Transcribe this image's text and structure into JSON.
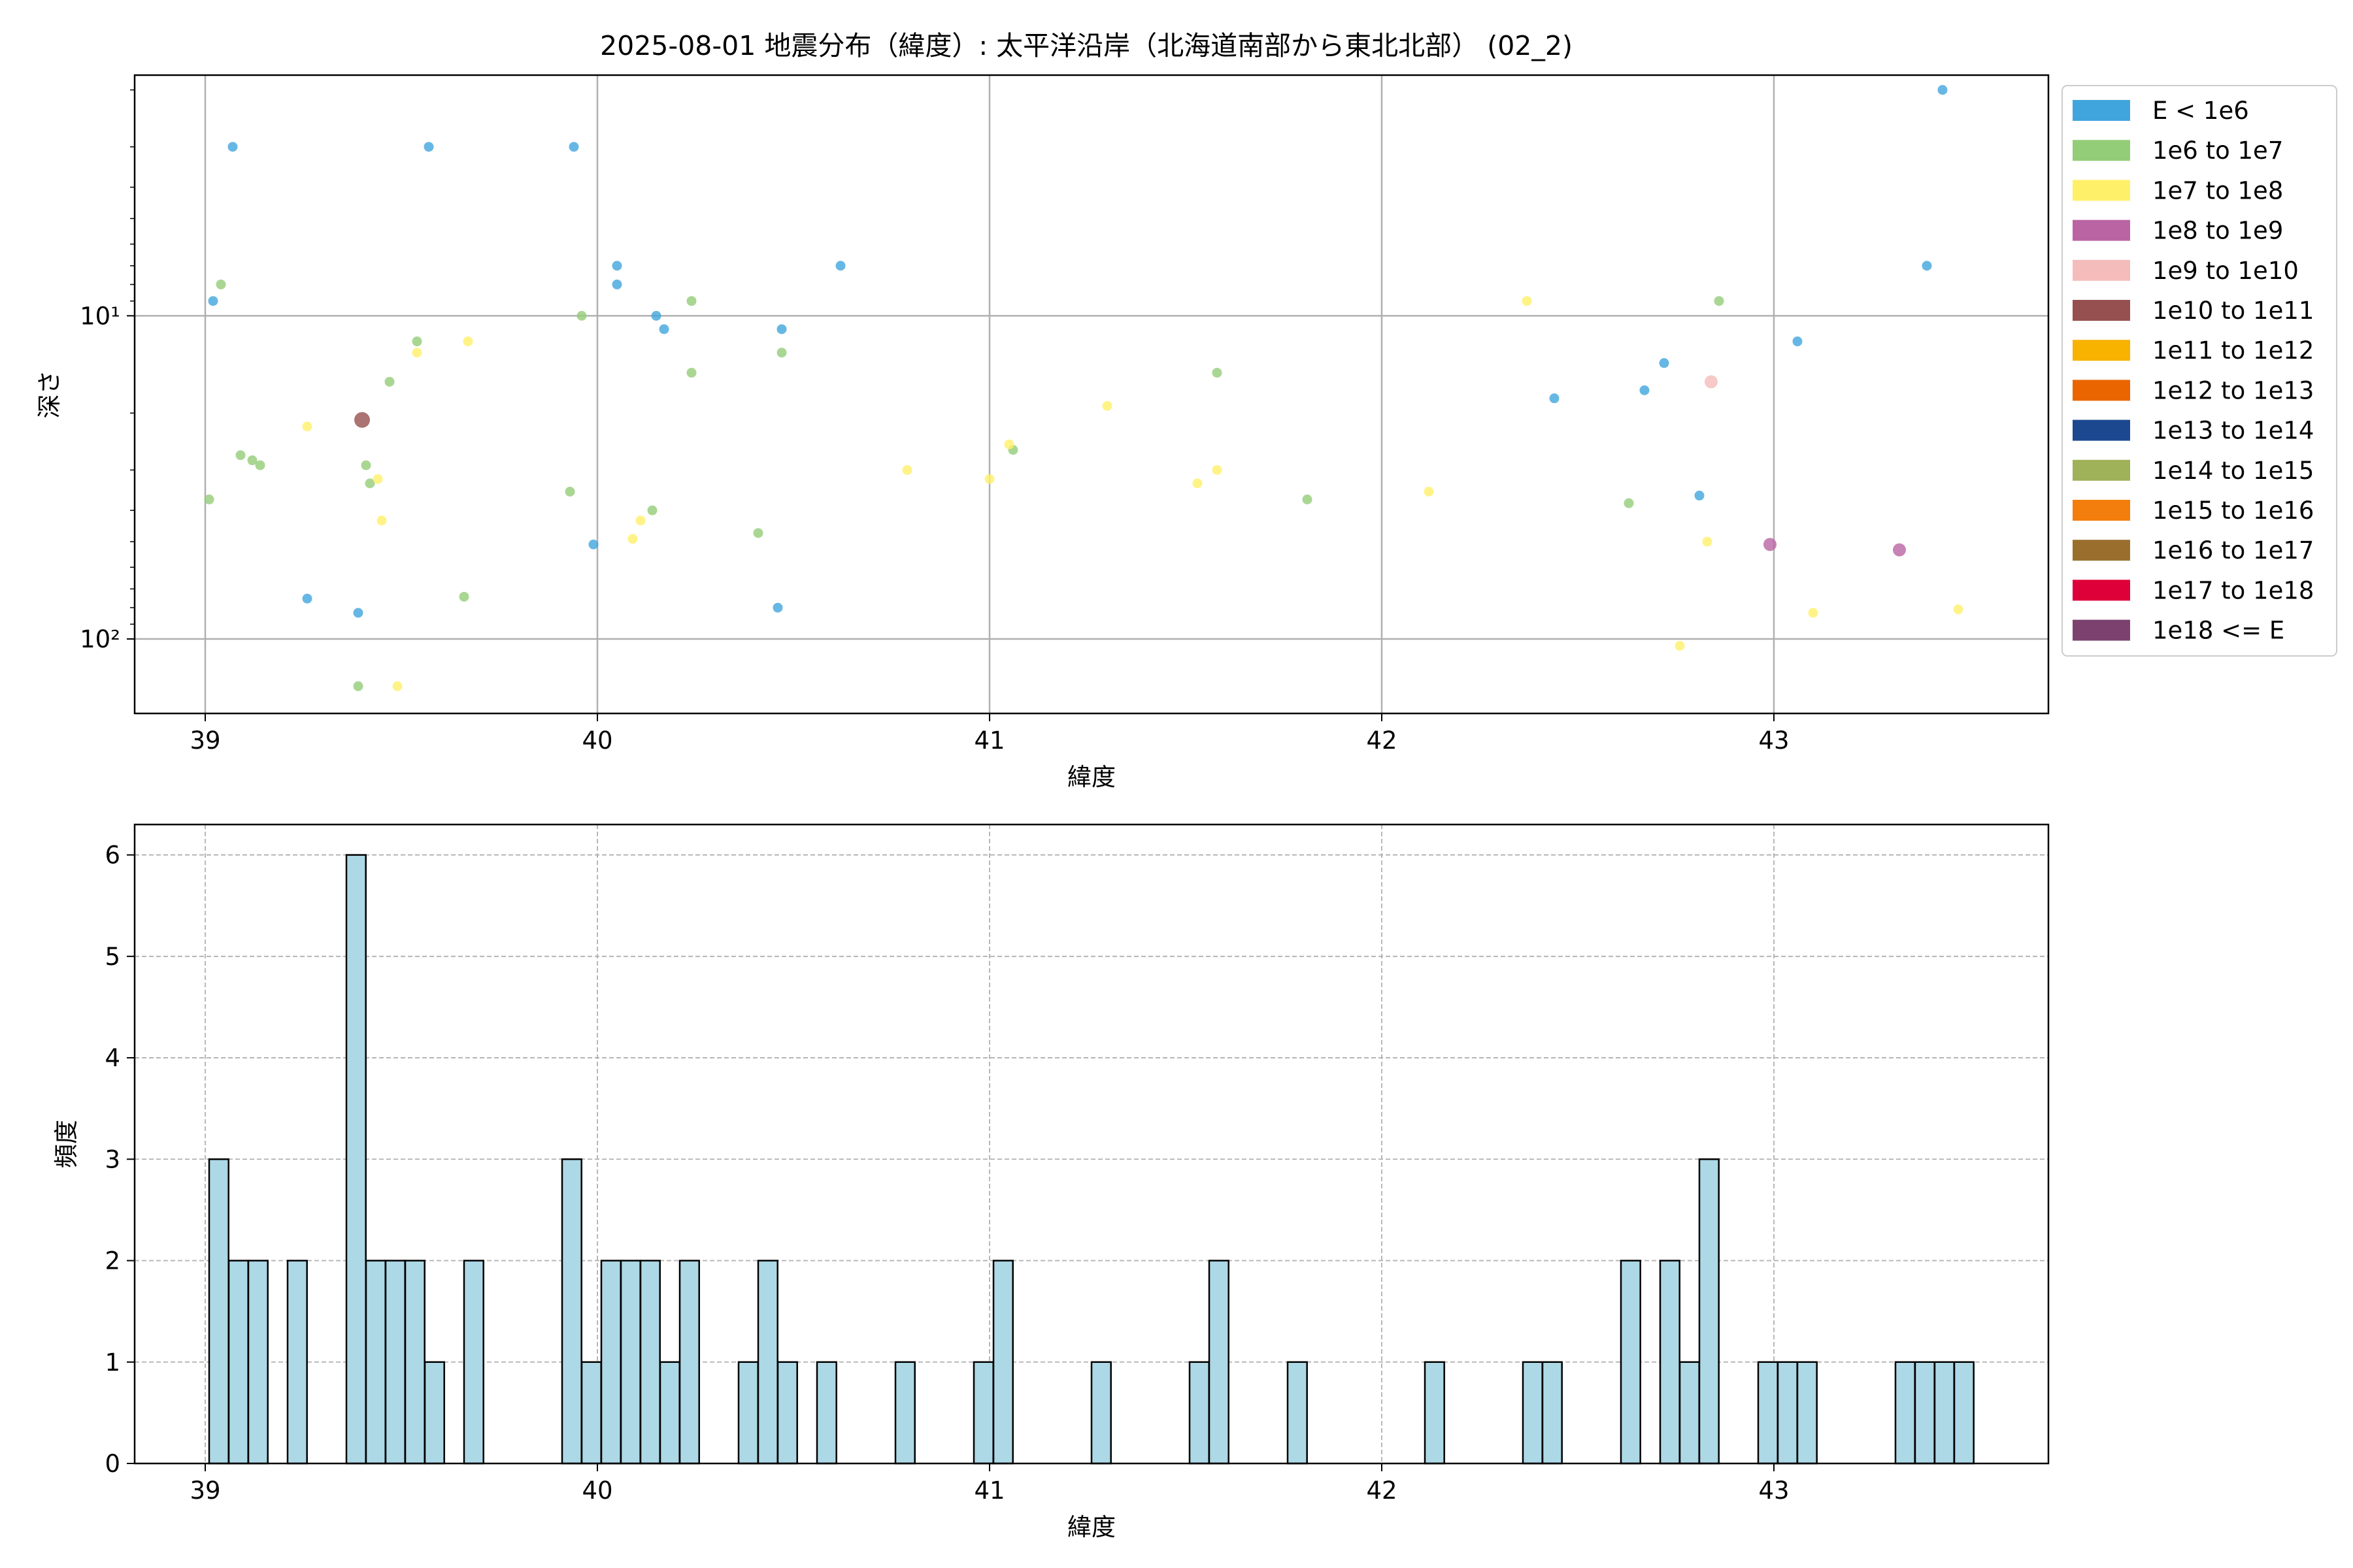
{
  "title": "2025-08-01 地震分布（緯度）: 太平洋沿岸（北海道南部から東北北部） (02_2)",
  "chart_data": [
    {
      "type": "scatter",
      "xlabel": "緯度",
      "ylabel": "深さ",
      "xlim": [
        38.82,
        43.7
      ],
      "ylim": [
        170,
        1.8
      ],
      "yscale": "log",
      "y_inverted": true,
      "xticks": [
        39,
        40,
        41,
        42,
        43
      ],
      "yticks": [
        {
          "value": 10,
          "label": "10¹"
        },
        {
          "value": 100,
          "label": "10²"
        }
      ],
      "grid": true,
      "legend_position": "outside-right",
      "legend": [
        {
          "label": "E < 1e6",
          "color": "#41a5dd"
        },
        {
          "label": "1e6 to 1e7",
          "color": "#94cd78"
        },
        {
          "label": "1e7 to 1e8",
          "color": "#fff06a"
        },
        {
          "label": "1e8 to 1e9",
          "color": "#ba64a4"
        },
        {
          "label": "1e9 to 1e10",
          "color": "#f5bcbc"
        },
        {
          "label": "1e10 to 1e11",
          "color": "#96504f"
        },
        {
          "label": "1e11 to 1e12",
          "color": "#f8b200"
        },
        {
          "label": "1e12 to 1e13",
          "color": "#ea6500"
        },
        {
          "label": "1e13 to 1e14",
          "color": "#1c4890"
        },
        {
          "label": "1e14 to 1e15",
          "color": "#9fb159"
        },
        {
          "label": "1e15 to 1e16",
          "color": "#f37e0d"
        },
        {
          "label": "1e16 to 1e17",
          "color": "#9a6f2e"
        },
        {
          "label": "1e17 to 1e18",
          "color": "#de0039"
        },
        {
          "label": "1e18 <= E",
          "color": "#7c416f"
        }
      ],
      "points": [
        {
          "x": 39.07,
          "y": 3.0,
          "c": 0
        },
        {
          "x": 39.57,
          "y": 3.0,
          "c": 0
        },
        {
          "x": 39.94,
          "y": 3.0,
          "c": 0
        },
        {
          "x": 39.02,
          "y": 9.0,
          "c": 0
        },
        {
          "x": 40.05,
          "y": 7.0,
          "c": 0
        },
        {
          "x": 40.05,
          "y": 8.0,
          "c": 0
        },
        {
          "x": 40.15,
          "y": 10.0,
          "c": 0
        },
        {
          "x": 40.17,
          "y": 11.0,
          "c": 0
        },
        {
          "x": 40.47,
          "y": 11.0,
          "c": 0
        },
        {
          "x": 40.62,
          "y": 7.0,
          "c": 0
        },
        {
          "x": 39.26,
          "y": 75.0,
          "c": 0
        },
        {
          "x": 39.39,
          "y": 83.0,
          "c": 0
        },
        {
          "x": 39.99,
          "y": 51.0,
          "c": 0
        },
        {
          "x": 40.46,
          "y": 80.0,
          "c": 0
        },
        {
          "x": 42.44,
          "y": 18.0,
          "c": 0
        },
        {
          "x": 42.67,
          "y": 17.0,
          "c": 0
        },
        {
          "x": 42.72,
          "y": 14.0,
          "c": 0
        },
        {
          "x": 42.81,
          "y": 36.0,
          "c": 0
        },
        {
          "x": 43.06,
          "y": 12.0,
          "c": 0
        },
        {
          "x": 43.39,
          "y": 7.0,
          "c": 0
        },
        {
          "x": 43.43,
          "y": 2.0,
          "c": 0
        },
        {
          "x": 39.01,
          "y": 37.0,
          "c": 1
        },
        {
          "x": 39.04,
          "y": 8.0,
          "c": 1
        },
        {
          "x": 39.09,
          "y": 27.0,
          "c": 1
        },
        {
          "x": 39.12,
          "y": 28.0,
          "c": 1
        },
        {
          "x": 39.14,
          "y": 29.0,
          "c": 1
        },
        {
          "x": 39.41,
          "y": 29.0,
          "c": 1
        },
        {
          "x": 39.42,
          "y": 33.0,
          "c": 1
        },
        {
          "x": 39.47,
          "y": 16.0,
          "c": 1
        },
        {
          "x": 39.54,
          "y": 12.0,
          "c": 1
        },
        {
          "x": 39.66,
          "y": 74.0,
          "c": 1
        },
        {
          "x": 39.39,
          "y": 140.0,
          "c": 1
        },
        {
          "x": 39.93,
          "y": 35.0,
          "c": 1
        },
        {
          "x": 39.96,
          "y": 10.0,
          "c": 1
        },
        {
          "x": 40.14,
          "y": 40.0,
          "c": 1
        },
        {
          "x": 40.24,
          "y": 9.0,
          "c": 1
        },
        {
          "x": 40.24,
          "y": 15.0,
          "c": 1
        },
        {
          "x": 40.41,
          "y": 47.0,
          "c": 1
        },
        {
          "x": 40.47,
          "y": 13.0,
          "c": 1
        },
        {
          "x": 41.06,
          "y": 26.0,
          "c": 1
        },
        {
          "x": 41.58,
          "y": 15.0,
          "c": 1
        },
        {
          "x": 41.81,
          "y": 37.0,
          "c": 1
        },
        {
          "x": 42.63,
          "y": 38.0,
          "c": 1
        },
        {
          "x": 42.86,
          "y": 9.0,
          "c": 1
        },
        {
          "x": 39.26,
          "y": 22.0,
          "c": 2
        },
        {
          "x": 39.44,
          "y": 32.0,
          "c": 2
        },
        {
          "x": 39.45,
          "y": 43.0,
          "c": 2
        },
        {
          "x": 39.49,
          "y": 140.0,
          "c": 2
        },
        {
          "x": 39.54,
          "y": 13.0,
          "c": 2
        },
        {
          "x": 39.67,
          "y": 12.0,
          "c": 2
        },
        {
          "x": 40.09,
          "y": 49.0,
          "c": 2
        },
        {
          "x": 40.11,
          "y": 43.0,
          "c": 2
        },
        {
          "x": 40.79,
          "y": 30.0,
          "c": 2
        },
        {
          "x": 41.0,
          "y": 32.0,
          "c": 2
        },
        {
          "x": 41.05,
          "y": 25.0,
          "c": 2
        },
        {
          "x": 41.3,
          "y": 19.0,
          "c": 2
        },
        {
          "x": 41.53,
          "y": 33.0,
          "c": 2
        },
        {
          "x": 41.58,
          "y": 30.0,
          "c": 2
        },
        {
          "x": 42.12,
          "y": 35.0,
          "c": 2
        },
        {
          "x": 42.37,
          "y": 9.0,
          "c": 2
        },
        {
          "x": 42.76,
          "y": 105.0,
          "c": 2
        },
        {
          "x": 42.83,
          "y": 50.0,
          "c": 2
        },
        {
          "x": 43.1,
          "y": 83.0,
          "c": 2
        },
        {
          "x": 43.47,
          "y": 81.0,
          "c": 2
        },
        {
          "x": 42.99,
          "y": 51.0,
          "c": 3
        },
        {
          "x": 43.32,
          "y": 53.0,
          "c": 3
        },
        {
          "x": 42.84,
          "y": 16.0,
          "c": 4
        },
        {
          "x": 39.4,
          "y": 21.0,
          "c": 5
        }
      ]
    },
    {
      "type": "bar",
      "xlabel": "緯度",
      "ylabel": "頻度",
      "xlim": [
        38.82,
        43.7
      ],
      "ylim": [
        0,
        6.3
      ],
      "xticks": [
        39,
        40,
        41,
        42,
        43
      ],
      "yticks": [
        0,
        1,
        2,
        3,
        4,
        5,
        6
      ],
      "grid": true,
      "bar_color": "#add8e6",
      "bin_width": 0.0495,
      "bins": [
        {
          "start": 39.01,
          "count": 3
        },
        {
          "start": 39.06,
          "count": 2
        },
        {
          "start": 39.11,
          "count": 2
        },
        {
          "start": 39.21,
          "count": 2
        },
        {
          "start": 39.36,
          "count": 6
        },
        {
          "start": 39.41,
          "count": 2
        },
        {
          "start": 39.46,
          "count": 2
        },
        {
          "start": 39.51,
          "count": 2
        },
        {
          "start": 39.56,
          "count": 1
        },
        {
          "start": 39.66,
          "count": 2
        },
        {
          "start": 39.91,
          "count": 3
        },
        {
          "start": 39.96,
          "count": 1
        },
        {
          "start": 40.01,
          "count": 2
        },
        {
          "start": 40.06,
          "count": 2
        },
        {
          "start": 40.11,
          "count": 2
        },
        {
          "start": 40.16,
          "count": 1
        },
        {
          "start": 40.21,
          "count": 2
        },
        {
          "start": 40.36,
          "count": 1
        },
        {
          "start": 40.41,
          "count": 2
        },
        {
          "start": 40.46,
          "count": 1
        },
        {
          "start": 40.56,
          "count": 1
        },
        {
          "start": 40.76,
          "count": 1
        },
        {
          "start": 40.96,
          "count": 1
        },
        {
          "start": 41.01,
          "count": 2
        },
        {
          "start": 41.26,
          "count": 1
        },
        {
          "start": 41.51,
          "count": 1
        },
        {
          "start": 41.56,
          "count": 2
        },
        {
          "start": 41.76,
          "count": 1
        },
        {
          "start": 42.11,
          "count": 1
        },
        {
          "start": 42.36,
          "count": 1
        },
        {
          "start": 42.41,
          "count": 1
        },
        {
          "start": 42.61,
          "count": 2
        },
        {
          "start": 42.71,
          "count": 2
        },
        {
          "start": 42.76,
          "count": 1
        },
        {
          "start": 42.81,
          "count": 3
        },
        {
          "start": 42.96,
          "count": 1
        },
        {
          "start": 43.01,
          "count": 1
        },
        {
          "start": 43.06,
          "count": 1
        },
        {
          "start": 43.31,
          "count": 1
        },
        {
          "start": 43.36,
          "count": 1
        },
        {
          "start": 43.41,
          "count": 1
        },
        {
          "start": 43.46,
          "count": 1
        }
      ]
    }
  ]
}
